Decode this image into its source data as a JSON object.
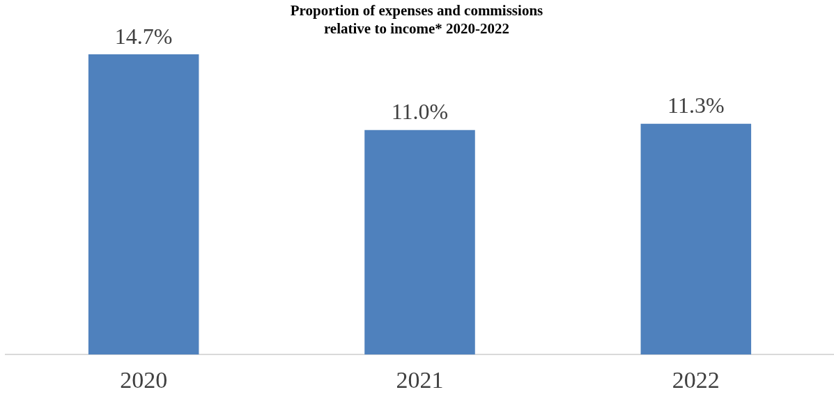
{
  "chart_data": {
    "type": "bar",
    "title": "Proportion of expenses and commissions relative to income* 2020-2022",
    "categories": [
      "2020",
      "2021",
      "2022"
    ],
    "values": [
      14.7,
      11.0,
      11.3
    ],
    "value_labels": [
      "14.7%",
      "11.0%",
      "11.3%"
    ],
    "color": "#4f81bd",
    "grid": false,
    "legend": false
  }
}
